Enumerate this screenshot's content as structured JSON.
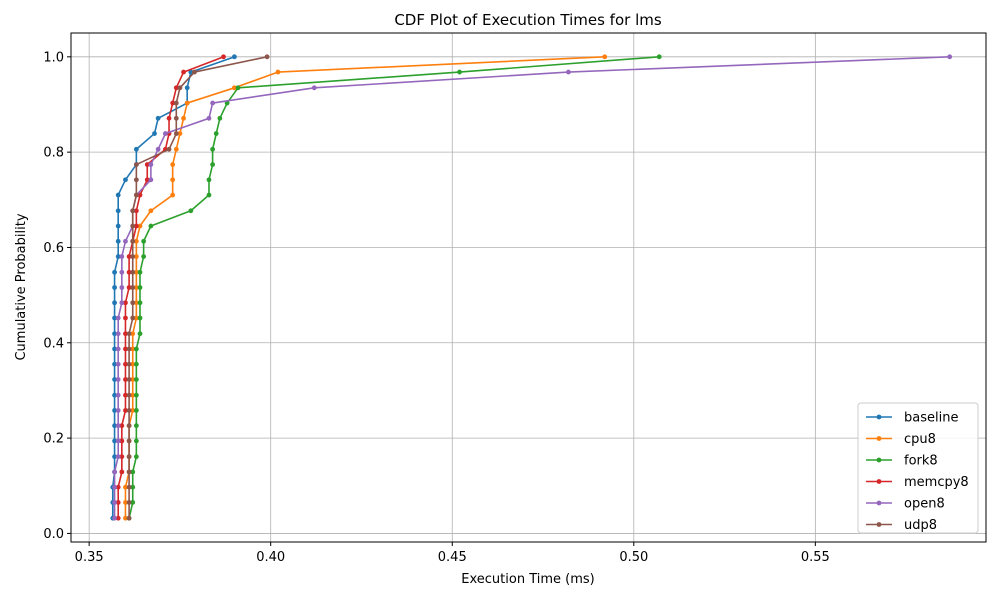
{
  "chart_data": {
    "type": "line",
    "title": "CDF Plot of Execution Times for lms",
    "xlabel": "Execution Time (ms)",
    "ylabel": "Cumulative Probability",
    "xlim": [
      0.345,
      0.597
    ],
    "ylim": [
      -0.018,
      1.05
    ],
    "xticks": [
      0.35,
      0.4,
      0.45,
      0.5,
      0.55
    ],
    "xtick_labels": [
      "0.35",
      "0.40",
      "0.45",
      "0.50",
      "0.55"
    ],
    "yticks": [
      0.0,
      0.2,
      0.4,
      0.6,
      0.8,
      1.0
    ],
    "ytick_labels": [
      "0.0",
      "0.2",
      "0.4",
      "0.6",
      "0.8",
      "1.0"
    ],
    "grid": true,
    "legend_position": "lower-right",
    "y": [
      0.032,
      0.065,
      0.097,
      0.129,
      0.161,
      0.194,
      0.226,
      0.258,
      0.29,
      0.323,
      0.355,
      0.387,
      0.419,
      0.452,
      0.484,
      0.516,
      0.548,
      0.581,
      0.613,
      0.645,
      0.677,
      0.71,
      0.742,
      0.774,
      0.806,
      0.839,
      0.871,
      0.903,
      0.935,
      0.968,
      1.0
    ],
    "series": [
      {
        "name": "baseline",
        "color": "#1f77b4",
        "x": [
          0.3565,
          0.3565,
          0.3565,
          0.357,
          0.357,
          0.357,
          0.357,
          0.357,
          0.357,
          0.357,
          0.357,
          0.357,
          0.357,
          0.357,
          0.357,
          0.357,
          0.357,
          0.358,
          0.358,
          0.358,
          0.358,
          0.358,
          0.36,
          0.363,
          0.363,
          0.368,
          0.369,
          0.377,
          0.377,
          0.378,
          0.39
        ]
      },
      {
        "name": "cpu8",
        "color": "#ff7f0e",
        "x": [
          0.36,
          0.36,
          0.36,
          0.361,
          0.361,
          0.361,
          0.361,
          0.362,
          0.362,
          0.362,
          0.362,
          0.362,
          0.362,
          0.363,
          0.363,
          0.363,
          0.363,
          0.363,
          0.363,
          0.364,
          0.367,
          0.373,
          0.373,
          0.373,
          0.374,
          0.375,
          0.376,
          0.377,
          0.39,
          0.402,
          0.492
        ]
      },
      {
        "name": "fork8",
        "color": "#2ca02c",
        "x": [
          0.361,
          0.362,
          0.362,
          0.362,
          0.363,
          0.363,
          0.363,
          0.363,
          0.363,
          0.363,
          0.363,
          0.363,
          0.364,
          0.364,
          0.364,
          0.364,
          0.364,
          0.365,
          0.365,
          0.367,
          0.378,
          0.383,
          0.383,
          0.384,
          0.384,
          0.385,
          0.386,
          0.388,
          0.391,
          0.452,
          0.507
        ]
      },
      {
        "name": "memcpy8",
        "color": "#d62728",
        "x": [
          0.358,
          0.358,
          0.358,
          0.359,
          0.359,
          0.359,
          0.359,
          0.36,
          0.36,
          0.36,
          0.36,
          0.36,
          0.36,
          0.36,
          0.36,
          0.361,
          0.361,
          0.361,
          0.362,
          0.363,
          0.363,
          0.364,
          0.366,
          0.366,
          0.371,
          0.372,
          0.372,
          0.373,
          0.374,
          0.376,
          0.387
        ]
      },
      {
        "name": "open8",
        "color": "#9467bd",
        "x": [
          0.357,
          0.357,
          0.357,
          0.357,
          0.358,
          0.358,
          0.358,
          0.358,
          0.358,
          0.358,
          0.358,
          0.358,
          0.358,
          0.358,
          0.359,
          0.359,
          0.359,
          0.359,
          0.36,
          0.362,
          0.362,
          0.363,
          0.367,
          0.367,
          0.369,
          0.371,
          0.383,
          0.384,
          0.412,
          0.482,
          0.587
        ]
      },
      {
        "name": "udp8",
        "color": "#8c564b",
        "x": [
          0.361,
          0.361,
          0.361,
          0.361,
          0.361,
          0.361,
          0.361,
          0.361,
          0.361,
          0.361,
          0.361,
          0.361,
          0.361,
          0.362,
          0.362,
          0.362,
          0.362,
          0.362,
          0.362,
          0.362,
          0.362,
          0.363,
          0.363,
          0.363,
          0.372,
          0.374,
          0.374,
          0.374,
          0.375,
          0.379,
          0.399
        ]
      }
    ]
  }
}
